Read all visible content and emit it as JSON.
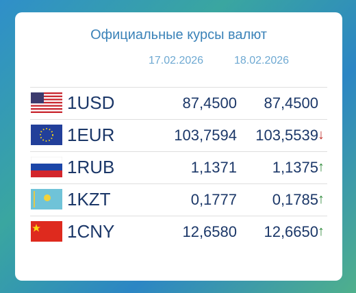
{
  "header": {
    "title": "Официальные курсы валют"
  },
  "table": {
    "columns": [
      "17.02.2026",
      "18.02.2026"
    ],
    "rows": [
      {
        "currency": "1USD",
        "values": [
          "87,4500",
          "87,4500"
        ]
      },
      {
        "currency": "1EUR",
        "values": [
          "103,7594",
          "103,5539"
        ],
        "trend": "↓"
      },
      {
        "currency": "1RUB",
        "values": [
          "1,1371",
          "1,1375"
        ],
        "trend": "↑"
      },
      {
        "currency": "1KZT",
        "values": [
          "0,1777",
          "0,1785"
        ],
        "trend": "↑"
      },
      {
        "currency": "1CNY",
        "values": [
          "12,6580",
          "12,6650"
        ],
        "trend": "↑"
      }
    ]
  }
}
